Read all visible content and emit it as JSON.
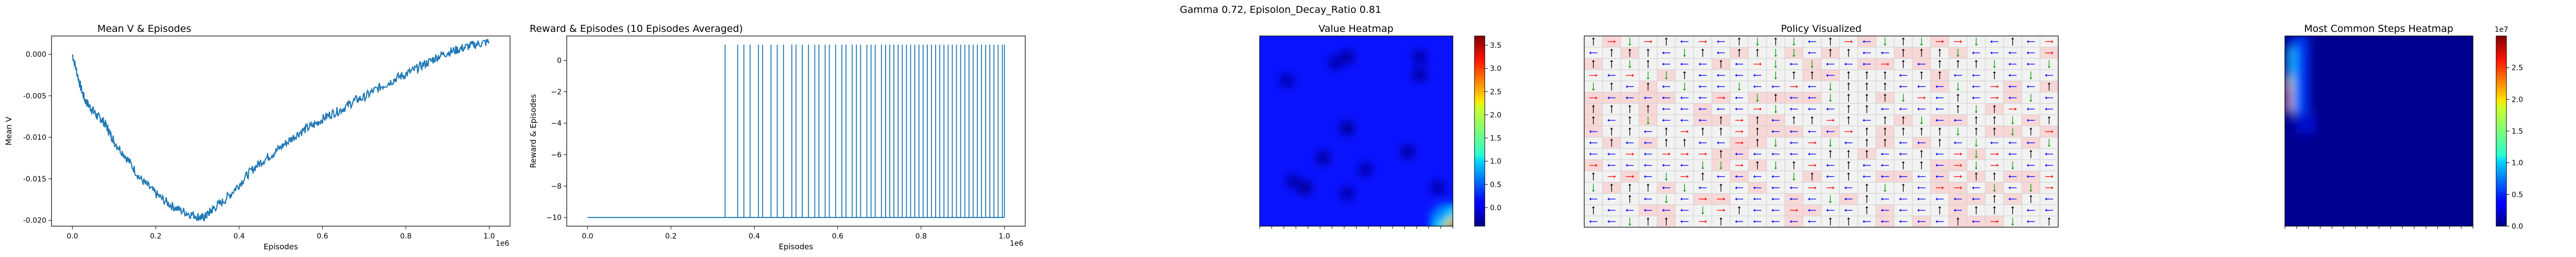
{
  "figure": {
    "suptitle": "Gamma  0.72, Episolon_Decay_Ratio 0.81"
  },
  "chart_data": [
    {
      "type": "line",
      "title": "Mean V & Episodes",
      "xlabel": "Episodes",
      "ylabel": "Mean V",
      "x_offset_label": "1e6",
      "xlim": [
        -0.05,
        1.05
      ],
      "ylim": [
        -0.0207,
        0.0022
      ],
      "xticks": [
        0.0,
        0.2,
        0.4,
        0.6,
        0.8,
        1.0
      ],
      "xtick_labels": [
        "0.0",
        "0.2",
        "0.4",
        "0.6",
        "0.8",
        "1.0"
      ],
      "yticks": [
        0.0,
        -0.005,
        -0.01,
        -0.015,
        -0.02
      ],
      "ytick_labels": [
        "0.000",
        "-0.005",
        "-0.010",
        "-0.015",
        "-0.020"
      ],
      "color": "#1f77b4",
      "series": [
        {
          "x": [
            0.0,
            0.01,
            0.02,
            0.03,
            0.04,
            0.05,
            0.06,
            0.07,
            0.08,
            0.09,
            0.1,
            0.12,
            0.14,
            0.16,
            0.18,
            0.2,
            0.22,
            0.24,
            0.26,
            0.28,
            0.3,
            0.31,
            0.32,
            0.33,
            0.34,
            0.36,
            0.38,
            0.4,
            0.42,
            0.44,
            0.46,
            0.48,
            0.5,
            0.52,
            0.54,
            0.56,
            0.58,
            0.6,
            0.62,
            0.64,
            0.66,
            0.68,
            0.7,
            0.72,
            0.74,
            0.76,
            0.78,
            0.8,
            0.82,
            0.84,
            0.86,
            0.88,
            0.9,
            0.92,
            0.94,
            0.96,
            0.98,
            1.0
          ],
          "values": [
            0.0,
            -0.002,
            -0.004,
            -0.0055,
            -0.0062,
            -0.0068,
            -0.0075,
            -0.0078,
            -0.0085,
            -0.0095,
            -0.0105,
            -0.0118,
            -0.0132,
            -0.0148,
            -0.0158,
            -0.0168,
            -0.0176,
            -0.0183,
            -0.0188,
            -0.0192,
            -0.0195,
            -0.0197,
            -0.0195,
            -0.019,
            -0.0185,
            -0.0178,
            -0.0168,
            -0.0157,
            -0.0145,
            -0.0135,
            -0.0127,
            -0.012,
            -0.0112,
            -0.0104,
            -0.0096,
            -0.009,
            -0.0085,
            -0.0078,
            -0.0072,
            -0.0068,
            -0.0062,
            -0.0055,
            -0.0052,
            -0.0045,
            -0.0039,
            -0.0034,
            -0.0028,
            -0.0024,
            -0.0019,
            -0.0013,
            -0.0008,
            -0.0002,
            0.0002,
            0.0005,
            0.0008,
            0.0011,
            0.0013,
            0.0015
          ]
        }
      ]
    },
    {
      "type": "line",
      "title": "Reward & Episodes (10 Episodes Averaged)",
      "xlabel": "Episodes",
      "ylabel": "Reward & Episodes",
      "x_offset_label": "1e6",
      "xlim": [
        -0.05,
        1.05
      ],
      "ylim": [
        -10.55,
        1.55
      ],
      "xticks": [
        0.0,
        0.2,
        0.4,
        0.6,
        0.8,
        1.0
      ],
      "xtick_labels": [
        "0.0",
        "0.2",
        "0.4",
        "0.6",
        "0.8",
        "1.0"
      ],
      "yticks": [
        0,
        -2,
        -4,
        -6,
        -8,
        -10
      ],
      "ytick_labels": [
        "0",
        "−2",
        "−4",
        "−6",
        "−8",
        "−10"
      ],
      "baseline": -10,
      "spike_value": 1,
      "color": "#1f77b4",
      "series": [
        {
          "x": [
            0.33,
            0.36,
            0.375,
            0.39,
            0.41,
            0.42,
            0.44,
            0.455,
            0.47,
            0.49,
            0.5,
            0.515,
            0.53,
            0.545,
            0.555,
            0.57,
            0.58,
            0.595,
            0.61,
            0.62,
            0.635,
            0.645,
            0.655,
            0.67,
            0.68,
            0.69,
            0.705,
            0.715,
            0.725,
            0.735,
            0.745,
            0.755,
            0.765,
            0.775,
            0.785,
            0.795,
            0.805,
            0.815,
            0.825,
            0.835,
            0.845,
            0.855,
            0.865,
            0.875,
            0.885,
            0.895,
            0.905,
            0.915,
            0.925,
            0.935,
            0.945,
            0.955,
            0.965,
            0.975,
            0.985,
            0.995,
            1.0
          ],
          "values": "spikes from -10 to 1 at each x"
        }
      ]
    },
    {
      "type": "heatmap",
      "title": "Value Heatmap",
      "grid_size": [
        32,
        32
      ],
      "colormap": "jet",
      "clim": [
        -0.4,
        3.7
      ],
      "colorbar_ticks": [
        0.0,
        0.5,
        1.0,
        1.5,
        2.0,
        2.5,
        3.0,
        3.5
      ],
      "colorbar_tick_labels": [
        "0.0",
        "0.5",
        "1.0",
        "1.5",
        "2.0",
        "2.5",
        "3.0",
        "3.5"
      ],
      "background_value": 0.0,
      "cells": [
        {
          "row": 3,
          "col": 14,
          "value": -0.25
        },
        {
          "row": 4,
          "col": 12,
          "value": -0.2
        },
        {
          "row": 6,
          "col": 26,
          "value": -0.25
        },
        {
          "row": 3,
          "col": 26,
          "value": -0.2
        },
        {
          "row": 7,
          "col": 4,
          "value": -0.2
        },
        {
          "row": 15,
          "col": 14,
          "value": -0.3
        },
        {
          "row": 19,
          "col": 24,
          "value": -0.25
        },
        {
          "row": 20,
          "col": 10,
          "value": -0.25
        },
        {
          "row": 22,
          "col": 17,
          "value": -0.2
        },
        {
          "row": 25,
          "col": 7,
          "value": -0.3
        },
        {
          "row": 24,
          "col": 5,
          "value": -0.2
        },
        {
          "row": 25,
          "col": 29,
          "value": -0.2
        },
        {
          "row": 26,
          "col": 14,
          "value": -0.2
        },
        {
          "row": 31,
          "col": 31,
          "value": 3.4
        },
        {
          "row": 30,
          "col": 31,
          "value": 2.4
        },
        {
          "row": 31,
          "col": 30,
          "value": 2.4
        },
        {
          "row": 29,
          "col": 31,
          "value": 1.2
        },
        {
          "row": 31,
          "col": 29,
          "value": 1.2
        },
        {
          "row": 30,
          "col": 30,
          "value": 1.6
        },
        {
          "row": 29,
          "col": 30,
          "value": 0.7
        },
        {
          "row": 30,
          "col": 29,
          "value": 0.7
        }
      ]
    },
    {
      "type": "heatmap",
      "title": "Policy Visualized",
      "grid_size": [
        17,
        26
      ],
      "arrow_colors": {
        "left": "#0000ff",
        "up": "#000000",
        "down": "#00a000",
        "right": "#ff0000"
      }
    },
    {
      "type": "heatmap",
      "title": "Most Common Steps Heatmap",
      "colormap": "jet",
      "clim": [
        0,
        3.0
      ],
      "colorbar_scale_label": "1e7",
      "colorbar_ticks": [
        0.0,
        0.5,
        1.0,
        1.5,
        2.0,
        2.5
      ],
      "colorbar_tick_labels": [
        "0.0",
        "0.5",
        "1.0",
        "1.5",
        "2.0",
        "2.5"
      ]
    }
  ]
}
